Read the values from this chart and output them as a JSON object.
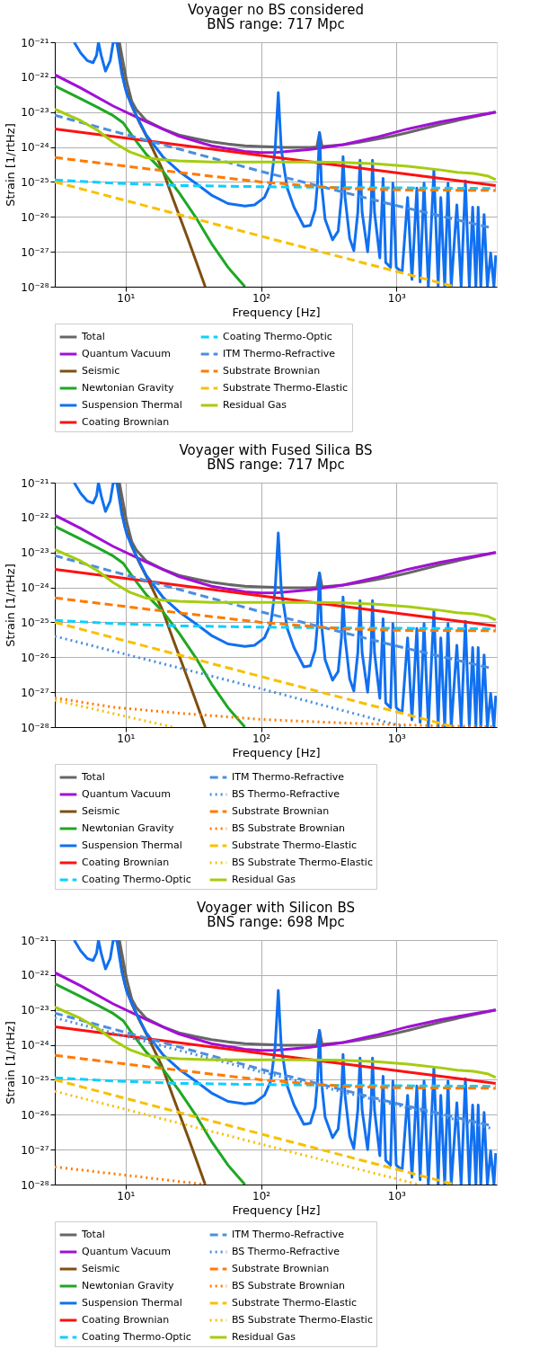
{
  "chart_data": [
    {
      "type": "line",
      "title": "Voyager no BS considered",
      "subtitle": "BNS range: 717 Mpc",
      "xlabel": "Frequency [Hz]",
      "ylabel": "Strain [1/rtHz]",
      "log": "xy",
      "grid": true,
      "legend": "bottom",
      "xlim": [
        3,
        5500
      ],
      "ylim": [
        1e-28,
        1e-21
      ],
      "xticks": [
        {
          "value": 10,
          "label": "10¹"
        },
        {
          "value": 100,
          "label": "10²"
        },
        {
          "value": 1000,
          "label": "10³"
        }
      ],
      "yticks": [
        {
          "value": 1e-28,
          "label": "10⁻²⁸"
        },
        {
          "value": 1e-27,
          "label": "10⁻²⁷"
        },
        {
          "value": 1e-26,
          "label": "10⁻²⁶"
        },
        {
          "value": 1e-25,
          "label": "10⁻²⁵"
        },
        {
          "value": 1e-24,
          "label": "10⁻²⁴"
        },
        {
          "value": 1e-23,
          "label": "10⁻²³"
        },
        {
          "value": 1e-22,
          "label": "10⁻²²"
        },
        {
          "value": 1e-21,
          "label": "10⁻²¹"
        }
      ],
      "series": [
        {
          "name": "Total",
          "color": "#666666",
          "line_style": "solid",
          "x": [
            9.0,
            10.2,
            11.1,
            12,
            14.2,
            18.8,
            24.8,
            32.8,
            43,
            57,
            76,
            100,
            125,
            134,
            144,
            231,
            258,
            270,
            282,
            403,
            532,
            703,
            931,
            1215,
            2123,
            3706,
            5400
          ],
          "values": [
            1e-21,
            7.3e-23,
            2.04e-23,
            1.17e-23,
            5.7e-24,
            3.3e-24,
            2.2e-24,
            1.74e-24,
            1.42e-24,
            1.21e-24,
            1.08e-24,
            1.03e-24,
            1e-24,
            null,
            9.7e-25,
            9.7e-25,
            1e-24,
            2.6e-24,
            1.03e-24,
            1.17e-24,
            1.37e-24,
            1.66e-24,
            2.04e-24,
            2.6e-24,
            4.5e-24,
            7.3e-24,
            1e-23
          ]
        },
        {
          "name": "Quantum Vacuum",
          "color": "#a30fd6",
          "line_style": "solid",
          "x": [
            3.0,
            4.66,
            8.1,
            14.2,
            24.8,
            43,
            76,
            100,
            131,
            231,
            403,
            703,
            1215,
            2123,
            5400
          ],
          "values": [
            1.17e-22,
            4.9e-23,
            1.49e-23,
            5.3e-24,
            2.04e-24,
            1.08e-24,
            7.5e-25,
            6.9e-25,
            7e-25,
            8.5e-25,
            1.17e-24,
            1.89e-24,
            3.3e-24,
            5.3e-24,
            1e-23
          ]
        },
        {
          "name": "Seismic",
          "color": "#7f4f0f",
          "line_style": "solid",
          "x": [
            8.7,
            9.2,
            9.9,
            11.1,
            12.7,
            15.0,
            18.6,
            22.2,
            29.3,
            38.7
          ],
          "values": [
            1e-21,
            2.6e-22,
            5.3e-23,
            1.49e-23,
            4.9e-24,
            1.37e-24,
            2.4e-25,
            3.6e-26,
            2e-27,
            1e-28
          ]
        },
        {
          "name": "Newtonian Gravity",
          "color": "#1ea823",
          "line_style": "solid",
          "x": [
            3.0,
            4.66,
            6.2,
            8.1,
            9.6,
            11.4,
            14.2,
            18.8,
            24.8,
            32.8,
            43,
            57,
            76
          ],
          "values": [
            5.6e-23,
            2.4e-23,
            1.37e-23,
            7.9e-24,
            4.9e-24,
            1.89e-24,
            6.2e-25,
            2.04e-25,
            4.9e-26,
            1e-26,
            1.74e-27,
            3.6e-28,
            1e-28
          ]
        },
        {
          "name": "Suspension Thermal",
          "color": "#1170f0",
          "line_style": "solid",
          "x": [
            4.17,
            4.66,
            5.2,
            5.75,
            6.1,
            6.3,
            6.6,
            7.1,
            7.7,
            8.1,
            8.6,
            9.4,
            10.2,
            12,
            14.2,
            18.8,
            24.8,
            32.8,
            43,
            57,
            76,
            89.5,
            106,
            118,
            127,
            134,
            141,
            156,
            175,
            207,
            231,
            251,
            261,
            270,
            279,
            297,
            337,
            371,
            392,
            403,
            417,
            451,
            484,
            518,
            538,
            557,
            612,
            647,
            665,
            688,
            753,
            796,
            832,
            904,
            940,
            995,
            1100,
            1208,
            1300,
            1413,
            1494,
            1597,
            1718,
            1888,
            2031,
            2123,
            2270,
            2400,
            2535,
            2790,
            3000,
            3224,
            3450,
            3648,
            3855,
            4008,
            4190,
            4433,
            4688,
            4955,
            5240,
            5400
          ],
          "values": [
            1e-21,
            4.9e-22,
            3e-22,
            2.6e-22,
            4.2e-22,
            1e-21,
            4.2e-22,
            1.49e-22,
            3e-22,
            1e-21,
            1e-21,
            1.17e-22,
            3.3e-23,
            7.9e-24,
            2.2e-24,
            5.3e-25,
            2e-25,
            9.2e-26,
            4.2e-26,
            2.4e-26,
            2.04e-26,
            2.2e-26,
            3.6e-26,
            9.2e-26,
            8.5e-25,
            3.6e-23,
            8.5e-25,
            6.7e-26,
            1.89e-26,
            5.3e-27,
            5.7e-27,
            1.61e-26,
            9.2e-26,
            2.6e-24,
            9.2e-26,
            8.5e-27,
            2.2e-27,
            3.9e-27,
            3.6e-26,
            5.3e-25,
            3.6e-26,
            2.4e-27,
            1.08e-27,
            1.37e-26,
            4.2e-25,
            1.37e-26,
            1e-27,
            1.37e-26,
            4.2e-25,
            1.37e-26,
            6.7e-28,
            1.27e-25,
            4.9e-28,
            3.6e-28,
            9.2e-26,
            3.6e-28,
            2.6e-28,
            3.6e-26,
            1.61e-28,
            6.7e-26,
            1.37e-28,
            9.2e-26,
            1e-28,
            2.2e-25,
            1e-28,
            3.6e-26,
            1e-28,
            9.2e-26,
            1e-28,
            2.2e-26,
            1e-28,
            1.08e-25,
            1e-28,
            1.89e-26,
            1e-28,
            1.89e-26,
            1e-28,
            1.17e-26,
            1e-28,
            9.2e-28,
            1e-28,
            7.9e-28
          ]
        },
        {
          "name": "Coating Brownian",
          "color": "#ff1010",
          "line_style": "solid",
          "x": [
            3.0,
            100,
            1000,
            5400
          ],
          "values": [
            3.3e-24,
            5.7e-25,
            1.83e-25,
            7.9e-26
          ]
        },
        {
          "name": "Coating Thermo-Optic",
          "color": "#0cd0ff",
          "line_style": "dashed",
          "x": [
            3.0,
            8.1,
            24.8,
            100,
            403,
            5400
          ],
          "values": [
            1.14e-25,
            9.2e-26,
            7.9e-26,
            7.3e-26,
            6.9e-26,
            6.5e-26
          ]
        },
        {
          "name": "ITM Thermo-Refractive",
          "color": "#4a8fe0",
          "line_style": "dashed",
          "x": [
            3.0,
            100,
            1000,
            4955
          ],
          "values": [
            8.1e-24,
            2e-25,
            2.1e-26,
            4.9e-27
          ]
        },
        {
          "name": "Substrate Brownian",
          "color": "#ff7a00",
          "line_style": "dashed",
          "x": [
            3.0,
            14.2,
            100,
            403,
            1000,
            5400
          ],
          "values": [
            5e-25,
            2.4e-25,
            1e-25,
            6.5e-26,
            5.9e-26,
            5.7e-26
          ]
        },
        {
          "name": "Substrate Thermo-Elastic",
          "color": "#f7c000",
          "line_style": "dashed",
          "x": [
            3.0,
            100,
            2690
          ],
          "values": [
            1e-25,
            2.8e-27,
            1e-28
          ]
        },
        {
          "name": "Residual Gas",
          "color": "#a6cc10",
          "line_style": "solid",
          "x": [
            3.0,
            4.66,
            6.2,
            8.1,
            10.7,
            14.2,
            18.8,
            24.8,
            43,
            100,
            231,
            403,
            703,
            1215,
            2123,
            2805,
            3706,
            4688,
            5400
          ],
          "values": [
            1.21e-23,
            5.7e-24,
            3e-24,
            1.37e-24,
            7.3e-25,
            4.9e-25,
            4.3e-25,
            4e-25,
            3.7e-25,
            3.7e-25,
            3.7e-25,
            3.6e-25,
            3.3e-25,
            2.8e-25,
            2.2e-25,
            1.89e-25,
            1.74e-25,
            1.49e-25,
            1.17e-25
          ]
        }
      ]
    },
    {
      "type": "line",
      "title": "Voyager with Fused Silica BS",
      "subtitle": "BNS range: 717 Mpc",
      "xlabel": "Frequency [Hz]",
      "ylabel": "Strain [1/rtHz]",
      "log": "xy",
      "grid": true,
      "legend": "bottom",
      "xlim": [
        3,
        5500
      ],
      "ylim": [
        1e-28,
        1e-21
      ],
      "xticks": [
        {
          "value": 10,
          "label": "10¹"
        },
        {
          "value": 100,
          "label": "10²"
        },
        {
          "value": 1000,
          "label": "10³"
        }
      ],
      "yticks": [
        {
          "value": 1e-28,
          "label": "10⁻²⁸"
        },
        {
          "value": 1e-27,
          "label": "10⁻²⁷"
        },
        {
          "value": 1e-26,
          "label": "10⁻²⁶"
        },
        {
          "value": 1e-25,
          "label": "10⁻²⁵"
        },
        {
          "value": 1e-24,
          "label": "10⁻²⁴"
        },
        {
          "value": 1e-23,
          "label": "10⁻²³"
        },
        {
          "value": 1e-22,
          "label": "10⁻²²"
        },
        {
          "value": 1e-21,
          "label": "10⁻²¹"
        }
      ],
      "series": [
        {
          "name": "Total",
          "color": "#666666",
          "line_style": "solid",
          "x": [
            9.0,
            10.2,
            11.1,
            12,
            14.2,
            18.8,
            24.8,
            32.8,
            43,
            57,
            76,
            100,
            125,
            134,
            144,
            231,
            258,
            270,
            282,
            403,
            532,
            703,
            931,
            1215,
            2123,
            3706,
            5400
          ],
          "values": [
            1e-21,
            7.3e-23,
            2.04e-23,
            1.17e-23,
            5.7e-24,
            3.3e-24,
            2.2e-24,
            1.74e-24,
            1.42e-24,
            1.21e-24,
            1.08e-24,
            1.03e-24,
            1e-24,
            null,
            9.7e-25,
            9.7e-25,
            1e-24,
            2.6e-24,
            1.03e-24,
            1.17e-24,
            1.37e-24,
            1.66e-24,
            2.04e-24,
            2.6e-24,
            4.5e-24,
            7.3e-24,
            1e-23
          ]
        },
        {
          "name": "Quantum Vacuum",
          "color": "#a30fd6",
          "line_style": "solid",
          "x": [
            3.0,
            4.66,
            8.1,
            14.2,
            24.8,
            43,
            76,
            100,
            131,
            231,
            403,
            703,
            1215,
            2123,
            5400
          ],
          "values": [
            1.17e-22,
            4.9e-23,
            1.49e-23,
            5.3e-24,
            2.04e-24,
            1.08e-24,
            7.5e-25,
            6.9e-25,
            7e-25,
            8.5e-25,
            1.17e-24,
            1.89e-24,
            3.3e-24,
            5.3e-24,
            1e-23
          ]
        },
        {
          "name": "Seismic",
          "color": "#7f4f0f",
          "line_style": "solid",
          "x": [
            8.7,
            9.2,
            9.9,
            11.1,
            12.7,
            15.0,
            18.6,
            22.2,
            29.3,
            38.7
          ],
          "values": [
            1e-21,
            2.6e-22,
            5.3e-23,
            1.49e-23,
            4.9e-24,
            1.37e-24,
            2.4e-25,
            3.6e-26,
            2e-27,
            1e-28
          ]
        },
        {
          "name": "Newtonian Gravity",
          "color": "#1ea823",
          "line_style": "solid",
          "x": [
            3.0,
            4.66,
            6.2,
            8.1,
            9.6,
            11.4,
            14.2,
            18.8,
            24.8,
            32.8,
            43,
            57,
            76
          ],
          "values": [
            5.6e-23,
            2.4e-23,
            1.37e-23,
            7.9e-24,
            4.9e-24,
            1.89e-24,
            6.2e-25,
            2.04e-25,
            4.9e-26,
            1e-26,
            1.74e-27,
            3.6e-28,
            1e-28
          ]
        },
        {
          "name": "Suspension Thermal",
          "color": "#1170f0",
          "line_style": "solid",
          "x": [
            4.17,
            4.66,
            5.2,
            5.75,
            6.1,
            6.3,
            6.6,
            7.1,
            7.7,
            8.1,
            8.6,
            9.4,
            10.2,
            12,
            14.2,
            18.8,
            24.8,
            32.8,
            43,
            57,
            76,
            89.5,
            106,
            118,
            127,
            134,
            141,
            156,
            175,
            207,
            231,
            251,
            261,
            270,
            279,
            297,
            337,
            371,
            392,
            403,
            417,
            451,
            484,
            518,
            538,
            557,
            612,
            647,
            665,
            688,
            753,
            796,
            832,
            904,
            940,
            995,
            1100,
            1208,
            1300,
            1413,
            1494,
            1597,
            1718,
            1888,
            2031,
            2123,
            2270,
            2400,
            2535,
            2790,
            3000,
            3224,
            3450,
            3648,
            3855,
            4008,
            4190,
            4433,
            4688,
            4955,
            5240,
            5400
          ],
          "values": [
            1e-21,
            4.9e-22,
            3e-22,
            2.6e-22,
            4.2e-22,
            1e-21,
            4.2e-22,
            1.49e-22,
            3e-22,
            1e-21,
            1e-21,
            1.17e-22,
            3.3e-23,
            7.9e-24,
            2.2e-24,
            5.3e-25,
            2e-25,
            9.2e-26,
            4.2e-26,
            2.4e-26,
            2.04e-26,
            2.2e-26,
            3.6e-26,
            9.2e-26,
            8.5e-25,
            3.6e-23,
            8.5e-25,
            6.7e-26,
            1.89e-26,
            5.3e-27,
            5.7e-27,
            1.61e-26,
            9.2e-26,
            2.6e-24,
            9.2e-26,
            8.5e-27,
            2.2e-27,
            3.9e-27,
            3.6e-26,
            5.3e-25,
            3.6e-26,
            2.4e-27,
            1.08e-27,
            1.37e-26,
            4.2e-25,
            1.37e-26,
            1e-27,
            1.37e-26,
            4.2e-25,
            1.37e-26,
            6.7e-28,
            1.27e-25,
            4.9e-28,
            3.6e-28,
            9.2e-26,
            3.6e-28,
            2.6e-28,
            3.6e-26,
            1.61e-28,
            6.7e-26,
            1.37e-28,
            9.2e-26,
            1e-28,
            2.2e-25,
            1e-28,
            3.6e-26,
            1e-28,
            9.2e-26,
            1e-28,
            2.2e-26,
            1e-28,
            1.08e-25,
            1e-28,
            1.89e-26,
            1e-28,
            1.89e-26,
            1e-28,
            1.17e-26,
            1e-28,
            9.2e-28,
            1e-28,
            7.9e-28
          ]
        },
        {
          "name": "Coating Brownian",
          "color": "#ff1010",
          "line_style": "solid",
          "x": [
            3.0,
            100,
            1000,
            5400
          ],
          "values": [
            3.3e-24,
            5.7e-25,
            1.83e-25,
            7.9e-26
          ]
        },
        {
          "name": "Coating Thermo-Optic",
          "color": "#0cd0ff",
          "line_style": "dashed",
          "x": [
            3.0,
            8.1,
            24.8,
            100,
            403,
            5400
          ],
          "values": [
            1.14e-25,
            9.2e-26,
            7.9e-26,
            7.3e-26,
            6.9e-26,
            6.5e-26
          ]
        },
        {
          "name": "ITM Thermo-Refractive",
          "color": "#4a8fe0",
          "line_style": "dashed",
          "x": [
            3.0,
            100,
            1000,
            4955
          ],
          "values": [
            8.1e-24,
            2e-25,
            2.1e-26,
            4.9e-27
          ]
        },
        {
          "name": "BS Thermo-Refractive",
          "color": "#4a8fe0",
          "line_style": "dotted",
          "x": [
            3.0,
            100,
            1160
          ],
          "values": [
            4e-26,
            1.25e-27,
            1e-28
          ]
        },
        {
          "name": "Substrate Brownian",
          "color": "#ff7a00",
          "line_style": "dashed",
          "x": [
            3.0,
            14.2,
            100,
            403,
            1000,
            5400
          ],
          "values": [
            5e-25,
            2.4e-25,
            1e-25,
            6.5e-26,
            5.9e-26,
            5.7e-26
          ]
        },
        {
          "name": "BS Substrate Brownian",
          "color": "#ff7a00",
          "line_style": "dotted",
          "x": [
            3.0,
            8.1,
            24.8,
            100,
            403,
            2123,
            5400
          ],
          "values": [
            6.9e-28,
            3.7e-28,
            2.5e-28,
            1.66e-28,
            1.31e-28,
            1.08e-28,
            1.02e-28
          ]
        },
        {
          "name": "Substrate Thermo-Elastic",
          "color": "#f7c000",
          "line_style": "dashed",
          "x": [
            3.0,
            100,
            2690
          ],
          "values": [
            1e-25,
            2.8e-27,
            1e-28
          ]
        },
        {
          "name": "BS Substrate Thermo-Elastic",
          "color": "#f7c000",
          "line_style": "dotted",
          "x": [
            3.0,
            22.2
          ],
          "values": [
            5.9e-28,
            1e-28
          ]
        },
        {
          "name": "Residual Gas",
          "color": "#a6cc10",
          "line_style": "solid",
          "x": [
            3.0,
            4.66,
            6.2,
            8.1,
            10.7,
            14.2,
            18.8,
            24.8,
            43,
            100,
            231,
            403,
            703,
            1215,
            2123,
            2805,
            3706,
            4688,
            5400
          ],
          "values": [
            1.21e-23,
            5.7e-24,
            3e-24,
            1.37e-24,
            7.3e-25,
            4.9e-25,
            4.3e-25,
            4e-25,
            3.7e-25,
            3.7e-25,
            3.7e-25,
            3.6e-25,
            3.3e-25,
            2.8e-25,
            2.2e-25,
            1.89e-25,
            1.74e-25,
            1.49e-25,
            1.17e-25
          ]
        }
      ]
    },
    {
      "type": "line",
      "title": "Voyager with Silicon BS",
      "subtitle": "BNS range: 698 Mpc",
      "xlabel": "Frequency [Hz]",
      "ylabel": "Strain [1/rtHz]",
      "log": "xy",
      "grid": true,
      "legend": "bottom",
      "xlim": [
        3,
        5500
      ],
      "ylim": [
        1e-28,
        1e-21
      ],
      "xticks": [
        {
          "value": 10,
          "label": "10¹"
        },
        {
          "value": 100,
          "label": "10²"
        },
        {
          "value": 1000,
          "label": "10³"
        }
      ],
      "yticks": [
        {
          "value": 1e-28,
          "label": "10⁻²⁸"
        },
        {
          "value": 1e-27,
          "label": "10⁻²⁷"
        },
        {
          "value": 1e-26,
          "label": "10⁻²⁶"
        },
        {
          "value": 1e-25,
          "label": "10⁻²⁵"
        },
        {
          "value": 1e-24,
          "label": "10⁻²⁴"
        },
        {
          "value": 1e-23,
          "label": "10⁻²³"
        },
        {
          "value": 1e-22,
          "label": "10⁻²²"
        },
        {
          "value": 1e-21,
          "label": "10⁻²¹"
        }
      ],
      "series": [
        {
          "name": "Total",
          "color": "#666666",
          "line_style": "solid",
          "x": [
            9.0,
            10.2,
            11.1,
            12,
            14.2,
            18.8,
            24.8,
            32.8,
            43,
            57,
            76,
            100,
            125,
            134,
            144,
            231,
            258,
            270,
            282,
            403,
            532,
            703,
            931,
            1215,
            2123,
            3706,
            5400
          ],
          "values": [
            1e-21,
            7.3e-23,
            2.04e-23,
            1.17e-23,
            5.7e-24,
            3.3e-24,
            2.2e-24,
            1.74e-24,
            1.42e-24,
            1.21e-24,
            1.08e-24,
            1.03e-24,
            1e-24,
            null,
            9.7e-25,
            9.7e-25,
            1e-24,
            2.6e-24,
            1.03e-24,
            1.17e-24,
            1.37e-24,
            1.66e-24,
            2.04e-24,
            2.6e-24,
            4.5e-24,
            7.3e-24,
            1e-23
          ]
        },
        {
          "name": "Quantum Vacuum",
          "color": "#a30fd6",
          "line_style": "solid",
          "x": [
            3.0,
            4.66,
            8.1,
            14.2,
            24.8,
            43,
            76,
            100,
            131,
            231,
            403,
            703,
            1215,
            2123,
            5400
          ],
          "values": [
            1.17e-22,
            4.9e-23,
            1.49e-23,
            5.3e-24,
            2.04e-24,
            1.08e-24,
            7.5e-25,
            6.9e-25,
            7e-25,
            8.5e-25,
            1.17e-24,
            1.89e-24,
            3.3e-24,
            5.3e-24,
            1e-23
          ]
        },
        {
          "name": "Seismic",
          "color": "#7f4f0f",
          "line_style": "solid",
          "x": [
            8.7,
            9.2,
            9.9,
            11.1,
            12.7,
            15.0,
            18.6,
            22.2,
            29.3,
            38.7
          ],
          "values": [
            1e-21,
            2.6e-22,
            5.3e-23,
            1.49e-23,
            4.9e-24,
            1.37e-24,
            2.4e-25,
            3.6e-26,
            2e-27,
            1e-28
          ]
        },
        {
          "name": "Newtonian Gravity",
          "color": "#1ea823",
          "line_style": "solid",
          "x": [
            3.0,
            4.66,
            6.2,
            8.1,
            9.6,
            11.4,
            14.2,
            18.8,
            24.8,
            32.8,
            43,
            57,
            76
          ],
          "values": [
            5.6e-23,
            2.4e-23,
            1.37e-23,
            7.9e-24,
            4.9e-24,
            1.89e-24,
            6.2e-25,
            2.04e-25,
            4.9e-26,
            1e-26,
            1.74e-27,
            3.6e-28,
            1e-28
          ]
        },
        {
          "name": "Suspension Thermal",
          "color": "#1170f0",
          "line_style": "solid",
          "x": [
            4.17,
            4.66,
            5.2,
            5.75,
            6.1,
            6.3,
            6.6,
            7.1,
            7.7,
            8.1,
            8.6,
            9.4,
            10.2,
            12,
            14.2,
            18.8,
            24.8,
            32.8,
            43,
            57,
            76,
            89.5,
            106,
            118,
            127,
            134,
            141,
            156,
            175,
            207,
            231,
            251,
            261,
            270,
            279,
            297,
            337,
            371,
            392,
            403,
            417,
            451,
            484,
            518,
            538,
            557,
            612,
            647,
            665,
            688,
            753,
            796,
            832,
            904,
            940,
            995,
            1100,
            1208,
            1300,
            1413,
            1494,
            1597,
            1718,
            1888,
            2031,
            2123,
            2270,
            2400,
            2535,
            2790,
            3000,
            3224,
            3450,
            3648,
            3855,
            4008,
            4190,
            4433,
            4688,
            4955,
            5240,
            5400
          ],
          "values": [
            1e-21,
            4.9e-22,
            3e-22,
            2.6e-22,
            4.2e-22,
            1e-21,
            4.2e-22,
            1.49e-22,
            3e-22,
            1e-21,
            1e-21,
            1.17e-22,
            3.3e-23,
            7.9e-24,
            2.2e-24,
            5.3e-25,
            2e-25,
            9.2e-26,
            4.2e-26,
            2.4e-26,
            2.04e-26,
            2.2e-26,
            3.6e-26,
            9.2e-26,
            8.5e-25,
            3.6e-23,
            8.5e-25,
            6.7e-26,
            1.89e-26,
            5.3e-27,
            5.7e-27,
            1.61e-26,
            9.2e-26,
            2.6e-24,
            9.2e-26,
            8.5e-27,
            2.2e-27,
            3.9e-27,
            3.6e-26,
            5.3e-25,
            3.6e-26,
            2.4e-27,
            1.08e-27,
            1.37e-26,
            4.2e-25,
            1.37e-26,
            1e-27,
            1.37e-26,
            4.2e-25,
            1.37e-26,
            6.7e-28,
            1.27e-25,
            4.9e-28,
            3.6e-28,
            9.2e-26,
            3.6e-28,
            2.6e-28,
            3.6e-26,
            1.61e-28,
            6.7e-26,
            1.37e-28,
            9.2e-26,
            1e-28,
            2.2e-25,
            1e-28,
            3.6e-26,
            1e-28,
            9.2e-26,
            1e-28,
            2.2e-26,
            1e-28,
            1.08e-25,
            1e-28,
            1.89e-26,
            1e-28,
            1.89e-26,
            1e-28,
            1.17e-26,
            1e-28,
            9.2e-28,
            1e-28,
            7.9e-28
          ]
        },
        {
          "name": "Coating Brownian",
          "color": "#ff1010",
          "line_style": "solid",
          "x": [
            3.0,
            100,
            1000,
            5400
          ],
          "values": [
            3.3e-24,
            5.7e-25,
            1.83e-25,
            7.9e-26
          ]
        },
        {
          "name": "Coating Thermo-Optic",
          "color": "#0cd0ff",
          "line_style": "dashed",
          "x": [
            3.0,
            8.1,
            24.8,
            100,
            403,
            5400
          ],
          "values": [
            1.14e-25,
            9.2e-26,
            7.9e-26,
            7.3e-26,
            6.9e-26,
            6.5e-26
          ]
        },
        {
          "name": "ITM Thermo-Refractive",
          "color": "#4a8fe0",
          "line_style": "dashed",
          "x": [
            3.0,
            100,
            1000,
            4955
          ],
          "values": [
            8.1e-24,
            2e-25,
            2.1e-26,
            4.9e-27
          ]
        },
        {
          "name": "BS Thermo-Refractive",
          "color": "#4a8fe0",
          "line_style": "dotted",
          "x": [
            3.0,
            100,
            5100
          ],
          "values": [
            6e-24,
            1.69e-25,
            4e-27
          ]
        },
        {
          "name": "Substrate Brownian",
          "color": "#ff7a00",
          "line_style": "dashed",
          "x": [
            3.0,
            14.2,
            100,
            403,
            1000,
            5400
          ],
          "values": [
            5e-25,
            2.4e-25,
            1e-25,
            6.5e-26,
            5.9e-26,
            5.7e-26
          ]
        },
        {
          "name": "BS Substrate Brownian",
          "color": "#ff7a00",
          "line_style": "dotted",
          "x": [
            3.0,
            38.7
          ],
          "values": [
            3.2e-28,
            1e-28
          ]
        },
        {
          "name": "Substrate Thermo-Elastic",
          "color": "#f7c000",
          "line_style": "dashed",
          "x": [
            3.0,
            100,
            2690
          ],
          "values": [
            1e-25,
            2.8e-27,
            1e-28
          ]
        },
        {
          "name": "BS Substrate Thermo-Elastic",
          "color": "#f7c000",
          "line_style": "dotted",
          "x": [
            3.0,
            100,
            1452
          ],
          "values": [
            4.7e-26,
            1.44e-27,
            1e-28
          ]
        },
        {
          "name": "Residual Gas",
          "color": "#a6cc10",
          "line_style": "solid",
          "x": [
            3.0,
            4.66,
            6.2,
            8.1,
            10.7,
            14.2,
            18.8,
            24.8,
            43,
            100,
            231,
            403,
            703,
            1215,
            2123,
            2805,
            3706,
            4688,
            5400
          ],
          "values": [
            1.21e-23,
            5.7e-24,
            3e-24,
            1.37e-24,
            7.3e-25,
            4.9e-25,
            4.3e-25,
            4e-25,
            3.7e-25,
            3.7e-25,
            3.7e-25,
            3.6e-25,
            3.3e-25,
            2.8e-25,
            2.2e-25,
            1.89e-25,
            1.74e-25,
            1.49e-25,
            1.17e-25
          ]
        }
      ]
    }
  ]
}
